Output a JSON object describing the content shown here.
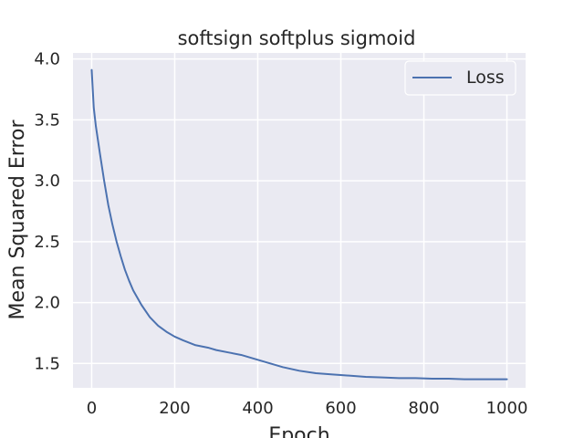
{
  "chart_data": {
    "type": "line",
    "title": "softsign softplus sigmoid",
    "xlabel": "Epoch",
    "ylabel": "Mean Squared Error",
    "xlim": [
      -45,
      1045
    ],
    "ylim": [
      1.3,
      4.05
    ],
    "xticks": [
      0,
      200,
      400,
      600,
      800,
      1000
    ],
    "xtick_labels": [
      "0",
      "200",
      "400",
      "600",
      "800",
      "1000"
    ],
    "yticks": [
      1.5,
      2.0,
      2.5,
      3.0,
      3.5,
      4.0
    ],
    "ytick_labels": [
      "1.5",
      "2.0",
      "2.5",
      "3.0",
      "3.5",
      "4.0"
    ],
    "grid": true,
    "legend_position": "top-right",
    "style": {
      "background": "#eaeaf2",
      "grid_color": "#ffffff",
      "line_color": "#4c72b0"
    },
    "series": [
      {
        "name": "Loss",
        "x": [
          0,
          5,
          10,
          20,
          30,
          40,
          50,
          60,
          70,
          80,
          90,
          100,
          120,
          140,
          160,
          180,
          200,
          220,
          250,
          280,
          300,
          330,
          360,
          400,
          430,
          460,
          500,
          540,
          580,
          620,
          660,
          700,
          740,
          780,
          820,
          860,
          900,
          940,
          980,
          1000
        ],
        "y": [
          3.91,
          3.6,
          3.45,
          3.22,
          3.0,
          2.8,
          2.64,
          2.5,
          2.38,
          2.27,
          2.18,
          2.1,
          1.98,
          1.88,
          1.81,
          1.76,
          1.72,
          1.69,
          1.65,
          1.63,
          1.61,
          1.59,
          1.57,
          1.53,
          1.5,
          1.47,
          1.44,
          1.42,
          1.41,
          1.4,
          1.39,
          1.385,
          1.38,
          1.38,
          1.375,
          1.375,
          1.37,
          1.37,
          1.37,
          1.37
        ]
      }
    ]
  }
}
